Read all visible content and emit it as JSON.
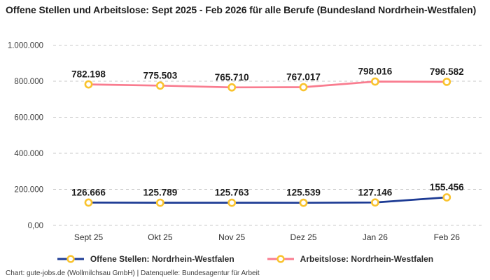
{
  "title": "Offene Stellen und Arbeitslose: Sept 2025 - Feb 2026 für alle Berufe (Bundesland Nordrhein-Westfalen)",
  "footer": "Chart: gute-jobs.de (Wollmilchsau GmbH) | Datenquelle: Bundesagentur für Arbeit",
  "chart_data": {
    "type": "line",
    "title": "Offene Stellen und Arbeitslose: Sept 2025 - Feb 2026 für alle Berufe (Bundesland Nordrhein-Westfalen)",
    "categories": [
      "Sept 25",
      "Okt 25",
      "Nov 25",
      "Dez 25",
      "Jan 26",
      "Feb 26"
    ],
    "series": [
      {
        "name": "Offene Stellen: Nordrhein-Westfalen",
        "color": "#1d3b94",
        "values": [
          126666,
          125789,
          125763,
          125539,
          127146,
          155456
        ],
        "labels": [
          "126.666",
          "125.789",
          "125.763",
          "125.539",
          "127.146",
          "155.456"
        ]
      },
      {
        "name": "Arbeitslose: Nordrhein-Westfalen",
        "color": "#f97c8f",
        "values": [
          782198,
          775503,
          765710,
          767017,
          798016,
          796582
        ],
        "labels": [
          "782.198",
          "775.503",
          "765.710",
          "767.017",
          "798.016",
          "796.582"
        ]
      }
    ],
    "marker": {
      "fill": "#ffffff",
      "stroke": "#f9c32e"
    },
    "y_axis": {
      "max": 1000000,
      "ticks": [
        0,
        200000,
        400000,
        600000,
        800000,
        1000000
      ],
      "tick_labels": [
        "0,00",
        "200.000",
        "400.000",
        "600.000",
        "800.000",
        "1.000.000"
      ]
    },
    "grid": "horizontal dashed",
    "legend_position": "bottom",
    "value_labels_shown": true
  }
}
